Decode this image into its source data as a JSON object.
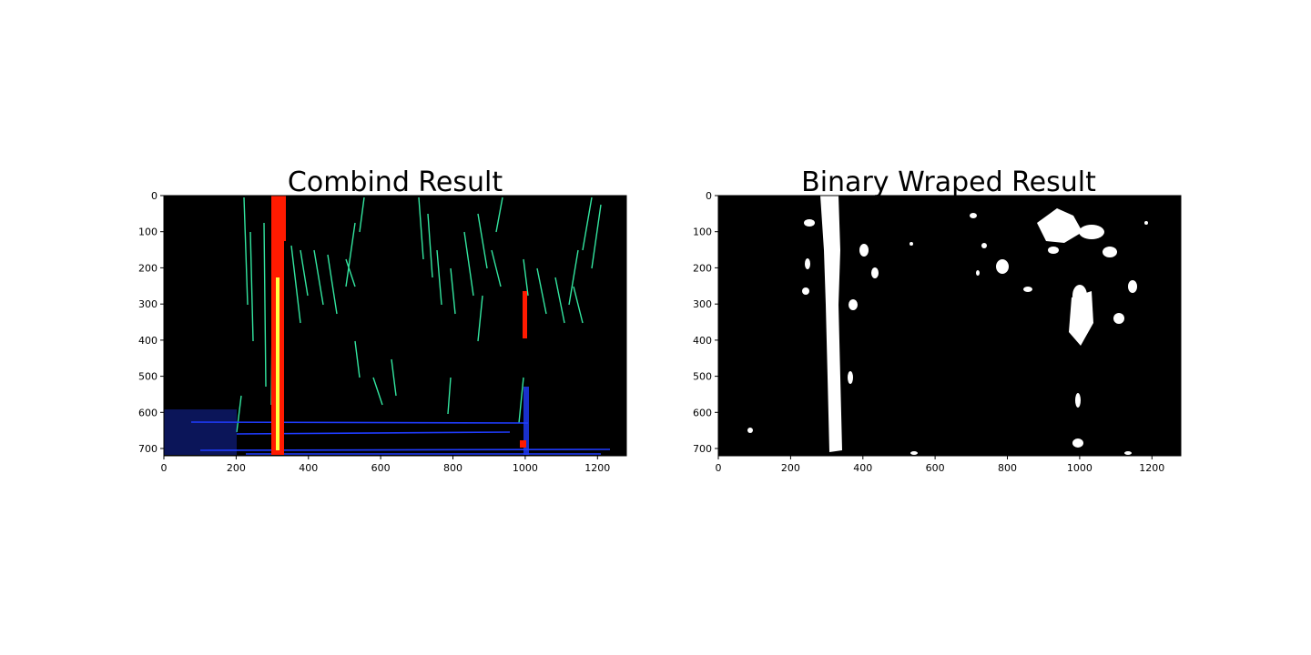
{
  "figure": {
    "panels": [
      {
        "id": "combined",
        "title": "Combind Result",
        "xticks": [
          "0",
          "200",
          "400",
          "600",
          "800",
          "1000",
          "1200"
        ],
        "yticks": [
          "0",
          "100",
          "200",
          "300",
          "400",
          "500",
          "600",
          "700"
        ],
        "xlim": [
          0,
          1280
        ],
        "ylim": [
          720,
          0
        ],
        "image": "colored lane-line combination image",
        "colors": {
          "background": "#000000",
          "lane_red": "#ff1a00",
          "lane_yellow": "#ffff40",
          "edge_green": "#33e6a0",
          "edge_blue": "#1f3cff"
        }
      },
      {
        "id": "binary",
        "title": "Binary Wraped Result",
        "xticks": [
          "0",
          "200",
          "400",
          "600",
          "800",
          "1000",
          "1200"
        ],
        "yticks": [
          "0",
          "100",
          "200",
          "300",
          "400",
          "500",
          "600",
          "700"
        ],
        "xlim": [
          0,
          1280
        ],
        "ylim": [
          720,
          0
        ],
        "image": "binary warped lane mask",
        "colors": {
          "background": "#000000",
          "foreground": "#ffffff"
        }
      }
    ]
  }
}
